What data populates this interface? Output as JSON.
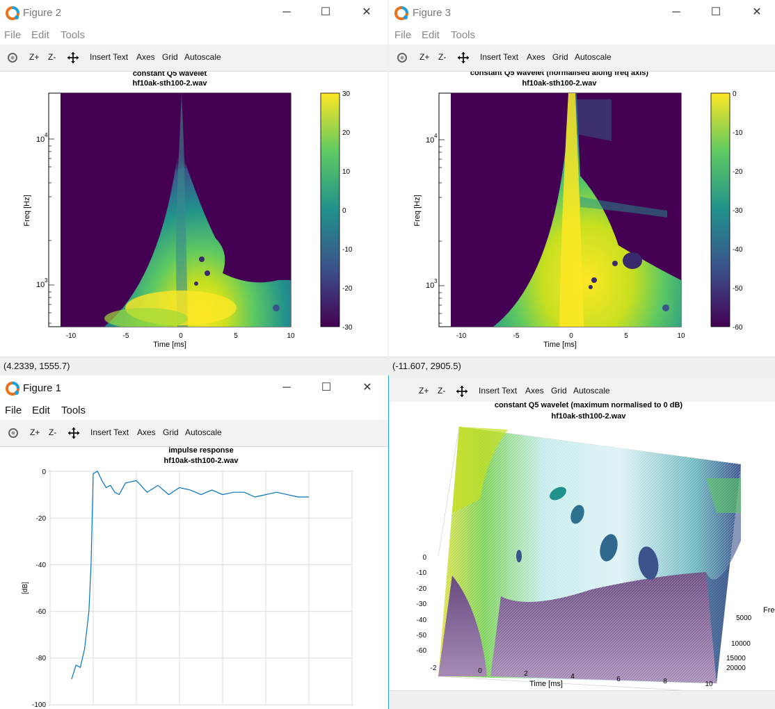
{
  "windows": {
    "fig2": {
      "title": "Figure 2",
      "menu": [
        "File",
        "Edit",
        "Tools"
      ],
      "toolbar": [
        "Z+",
        "Z-",
        "Insert Text",
        "Axes",
        "Grid",
        "Autoscale"
      ],
      "plot_title_1": "constant Q5 wavelet",
      "plot_title_2": "hf10ak-sth100-2.wav",
      "ylabel": "Freq [Hz]",
      "xlabel": "Time [ms]",
      "xticks": [
        "-10",
        "-5",
        "0",
        "5",
        "10"
      ],
      "yticks": [
        "10",
        "10"
      ],
      "yexp": [
        "4",
        "3"
      ],
      "colorbar_ticks": [
        "30",
        "20",
        "10",
        "0",
        "-10",
        "-20",
        "-30"
      ],
      "status": "(4.2339, 1555.7)"
    },
    "fig3": {
      "title": "Figure 3",
      "menu": [
        "File",
        "Edit",
        "Tools"
      ],
      "toolbar": [
        "Z+",
        "Z-",
        "Insert Text",
        "Axes",
        "Grid",
        "Autoscale"
      ],
      "plot_title_1": "constant Q5 wavelet (normalised along freq axis)",
      "plot_title_2": "hf10ak-sth100-2.wav",
      "ylabel": "Freq [Hz]",
      "xlabel": "Time [ms]",
      "xticks": [
        "-10",
        "-5",
        "0",
        "5",
        "10"
      ],
      "yticks": [
        "10",
        "10"
      ],
      "yexp": [
        "4",
        "3"
      ],
      "colorbar_ticks": [
        "0",
        "-10",
        "-20",
        "-30",
        "-40",
        "-50",
        "-60"
      ],
      "status": "(-11.607, 2905.5)"
    },
    "fig1": {
      "title": "Figure 1",
      "menu": [
        "File",
        "Edit",
        "Tools"
      ],
      "toolbar": [
        "Z+",
        "Z-",
        "Insert Text",
        "Axes",
        "Grid",
        "Autoscale"
      ],
      "plot_title_1": "impulse response",
      "plot_title_2": "hf10ak-sth100-2.wav",
      "ylabel": "[dB]",
      "yticks": [
        "0",
        "-20",
        "-40",
        "-60",
        "-80",
        "-100"
      ]
    },
    "fig4": {
      "toolbar": [
        "Z+",
        "Z-",
        "Insert Text",
        "Axes",
        "Grid",
        "Autoscale"
      ],
      "plot_title_1": "constant Q5 wavelet (maximum normalised to 0 dB)",
      "plot_title_2": "hf10ak-sth100-2.wav",
      "xlabel": "Time [ms]",
      "xticks": [
        "-2",
        "0",
        "2",
        "4",
        "6",
        "8",
        "10"
      ],
      "zticks": [
        "0",
        "-10",
        "-20",
        "-30",
        "-40",
        "-50",
        "-60"
      ],
      "yticks": [
        "5000",
        "10000",
        "15000",
        "20000"
      ],
      "ylabel_partial": "Fre"
    }
  },
  "colors": {
    "viridis_dark": "#440154",
    "viridis_yellow": "#fde725",
    "line_blue": "#0072bd",
    "accent": "#1ea0dc"
  },
  "chart_data": [
    {
      "type": "line",
      "title": "impulse response",
      "subtitle": "hf10ak-sth100-2.wav",
      "ylabel": "[dB]",
      "ylim": [
        -100,
        0
      ],
      "xlim": [
        -2,
        12
      ],
      "grid": true,
      "series": [
        {
          "x": [
            -1,
            -0.8,
            -0.6,
            -0.4,
            -0.2,
            -0.1,
            0,
            0.2,
            0.4,
            0.6,
            0.8,
            1.0,
            1.2,
            1.5,
            2.0,
            2.5,
            3.0,
            3.5,
            4.0,
            4.5,
            5.0,
            5.5,
            6.0,
            6.5,
            7.0,
            7.5,
            8.0,
            8.5,
            9.0,
            9.5,
            10.0
          ],
          "y": [
            -89,
            -83,
            -84,
            -76,
            -60,
            -40,
            -1,
            0,
            -4,
            -7,
            -6,
            -9,
            -10,
            -5,
            -4,
            -9,
            -6,
            -10,
            -7,
            -8,
            -10,
            -8,
            -10,
            -9,
            -9,
            -11,
            -10,
            -9,
            -10,
            -11,
            -11
          ]
        }
      ]
    },
    {
      "type": "heatmap",
      "title": "constant Q5 wavelet",
      "subtitle": "hf10ak-sth100-2.wav",
      "xlabel": "Time [ms]",
      "ylabel": "Freq [Hz]",
      "xlim": [
        -12,
        10
      ],
      "yscale": "log",
      "colorbar_range": [
        -30,
        30
      ]
    },
    {
      "type": "heatmap",
      "title": "constant Q5 wavelet (normalised along freq axis)",
      "subtitle": "hf10ak-sth100-2.wav",
      "xlabel": "Time [ms]",
      "ylabel": "Freq [Hz]",
      "xlim": [
        -12,
        10
      ],
      "yscale": "log",
      "colorbar_range": [
        -60,
        0
      ]
    }
  ]
}
